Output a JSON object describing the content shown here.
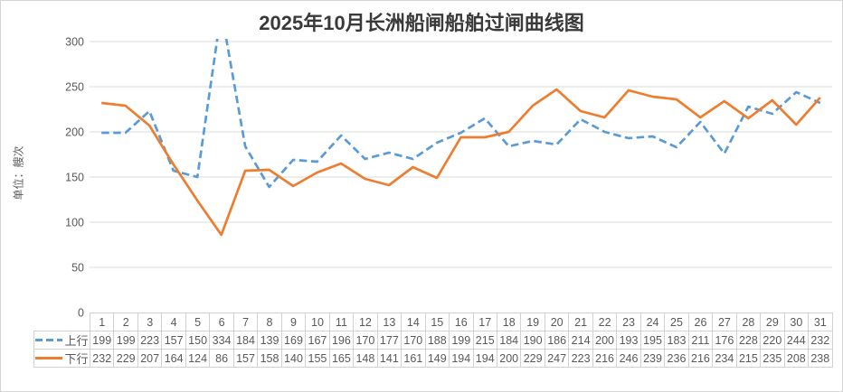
{
  "title": "2025年10月长洲船闸船舶过闸曲线图",
  "y_axis": {
    "unit_label": "单位：艘次",
    "tick_labels": [
      "0",
      "50",
      "100",
      "150",
      "200",
      "250",
      "300"
    ]
  },
  "chart_data": {
    "type": "line",
    "title": "2025年10月长洲船闸船舶过闸曲线图",
    "xlabel": "",
    "ylabel": "单位：艘次",
    "x": [
      1,
      2,
      3,
      4,
      5,
      6,
      7,
      8,
      9,
      10,
      11,
      12,
      13,
      14,
      15,
      16,
      17,
      18,
      19,
      20,
      21,
      22,
      23,
      24,
      25,
      26,
      27,
      28,
      29,
      30,
      31
    ],
    "series": [
      {
        "name": "上行",
        "color": "#5B9BD5",
        "line_style": "dashed",
        "values": [
          199,
          199,
          223,
          157,
          150,
          334,
          184,
          139,
          169,
          167,
          196,
          170,
          177,
          170,
          188,
          199,
          215,
          184,
          190,
          186,
          214,
          200,
          193,
          195,
          183,
          211,
          176,
          228,
          220,
          244,
          232
        ]
      },
      {
        "name": "下行",
        "color": "#ED7D31",
        "line_style": "solid",
        "values": [
          232,
          229,
          207,
          164,
          124,
          86,
          157,
          158,
          140,
          155,
          165,
          148,
          141,
          161,
          149,
          194,
          194,
          200,
          229,
          247,
          223,
          216,
          246,
          239,
          236,
          216,
          234,
          215,
          235,
          208,
          238
        ]
      }
    ],
    "ylim": [
      0,
      300
    ],
    "ytick_step": 50,
    "grid": true,
    "values_above_ymax_clipped": true,
    "legend_position": "left-of-data-table",
    "data_table_shown": true
  },
  "colors": {
    "upstream_line": "#5B9BD5",
    "downstream_line": "#ED7D31",
    "gridline": "#DBDBDB",
    "axis_text": "#595959",
    "title_text": "#3A3A3A",
    "table_border": "#D2D2D2",
    "table_text": "#595959",
    "frame_border": "#D4D4D4",
    "background": "#FFFFFF"
  }
}
